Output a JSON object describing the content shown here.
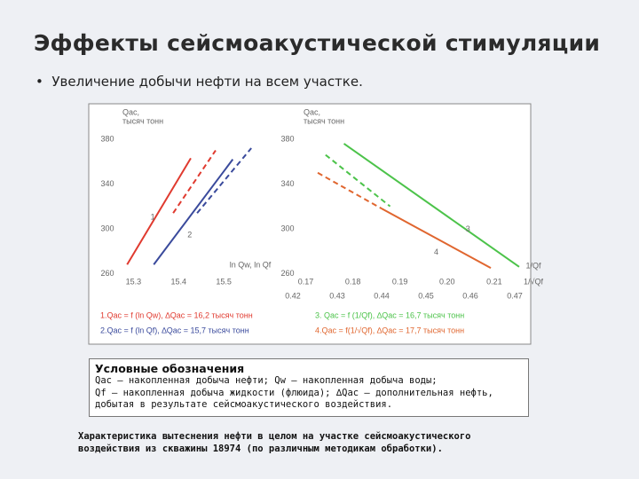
{
  "header": {
    "title": "Эффекты сейсмоакустической стимуляции",
    "bullet": "Увеличение добычи нефти на всем участке."
  },
  "chart_data": [
    {
      "type": "line",
      "ylabel": [
        "Qас,",
        "тысяч тонн"
      ],
      "xlabel": "ln Qw, ln Qf",
      "xlim": [
        15.26,
        15.6
      ],
      "xticks": [
        15.3,
        15.4,
        15.5
      ],
      "ylim": [
        250,
        395
      ],
      "yticks": [
        260,
        300,
        340,
        380
      ],
      "series": [
        {
          "name": "1.Qас = f (ln Qw), ∆Qас = 16,2 тысяч тонн",
          "label": "1",
          "color": "#e03a2f",
          "x": [
            15.286,
            15.427
          ],
          "values": [
            268,
            363
          ]
        },
        {
          "color": "#e03a2f",
          "dashed": true,
          "x": [
            15.388,
            15.482
          ],
          "values": [
            314,
            370
          ]
        },
        {
          "name": "2.Qас = f (ln Qf), ∆Qас = 15,7 тысяч тонн",
          "label": "2",
          "color": "#3a4a9c",
          "x": [
            15.345,
            15.52
          ],
          "values": [
            268,
            362
          ]
        },
        {
          "color": "#3a4a9c",
          "dashed": true,
          "x": [
            15.441,
            15.561
          ],
          "values": [
            314,
            372
          ]
        }
      ]
    },
    {
      "type": "line",
      "ylabel": [
        "Qас,",
        "тысяч тонн"
      ],
      "xlabel": "1/Qf",
      "x2label": "1/√Qf",
      "xlim": [
        0.165,
        0.217
      ],
      "xticks": [
        0.17,
        0.18,
        0.19,
        {
          "value": 0.2,
          "label": "0.20"
        },
        0.21
      ],
      "x2lim": [
        0.4176,
        0.4728
      ],
      "x2ticks": [
        0.42,
        0.43,
        0.44,
        0.45,
        0.46,
        0.47
      ],
      "ylim": [
        250,
        395
      ],
      "yticks": [
        260,
        300,
        340,
        380
      ],
      "series": [
        {
          "name": "3. Qас = f (1/Qf), ∆Qас = 16,7 тысяч тонн",
          "label": "3",
          "color": "#4cc34a",
          "x": [
            0.1781,
            0.2153
          ],
          "values": [
            376,
            266
          ]
        },
        {
          "color": "#4cc34a",
          "dashed": true,
          "x": [
            0.1742,
            0.1879
          ],
          "values": [
            366,
            320
          ]
        },
        {
          "name": "4.Qас = f(1/√Qf), ∆Qас = 17,7 тысяч тонн",
          "label": "4",
          "color": "#e0662f",
          "x_axis": "x2",
          "x": [
            0.44,
            0.4646
          ],
          "values": [
            318,
            265
          ]
        },
        {
          "color": "#e0662f",
          "dashed": true,
          "x_axis": "x2",
          "x": [
            0.4256,
            0.44
          ],
          "values": [
            350,
            318
          ]
        }
      ]
    }
  ],
  "legend_box": {
    "title": "Условные обозначения",
    "lines": [
      "Qас – накопленная добыча нефти; Qw – накопленная добыча воды;",
      "Qf – накопленная добыча жидкости (флюида); ∆Qас – дополнительная нефть,",
      "добытая в результате сейсмоакустического воздействия."
    ]
  },
  "caption": [
    "Характеристика вытеснения нефти в целом на участке сейсмоакустического",
    "воздействия из скважины 18974 (по различным методикам обработки)."
  ]
}
